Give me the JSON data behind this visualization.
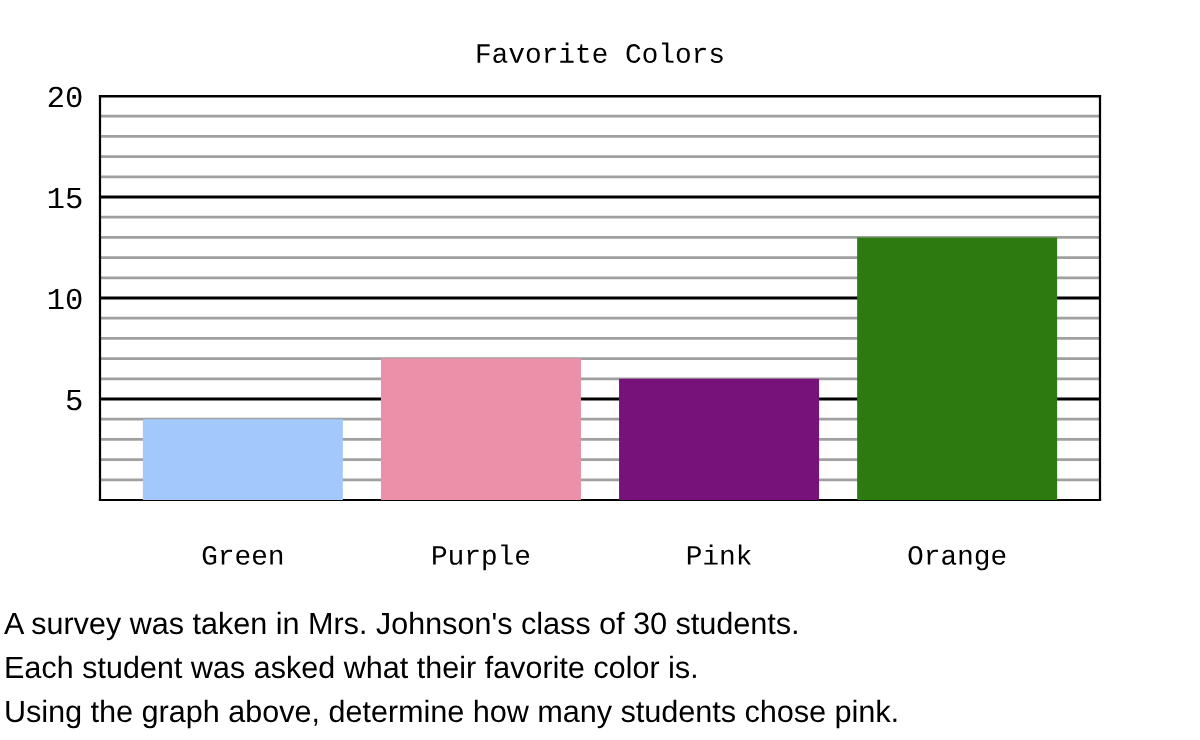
{
  "chart_data": {
    "type": "bar",
    "title": "Favorite Colors",
    "categories": [
      "Green",
      "Purple",
      "Pink",
      "Orange"
    ],
    "values": [
      4,
      7,
      6,
      13
    ],
    "colors": [
      "#a3c8fb",
      "#ec8fa8",
      "#77127a",
      "#2d7a10"
    ],
    "ylim": [
      0,
      20
    ],
    "yticks": [
      {
        "value": 1,
        "label": null
      },
      {
        "value": 2,
        "label": null
      },
      {
        "value": 3,
        "label": null
      },
      {
        "value": 4,
        "label": null
      },
      5,
      {
        "value": 6,
        "label": null
      },
      {
        "value": 7,
        "label": null
      },
      {
        "value": 8,
        "label": null
      },
      {
        "value": 9,
        "label": null
      },
      10,
      {
        "value": 11,
        "label": null
      },
      {
        "value": 12,
        "label": null
      },
      {
        "value": 13,
        "label": null
      },
      {
        "value": 14,
        "label": null
      },
      15,
      {
        "value": 16,
        "label": null
      },
      {
        "value": 17,
        "label": null
      },
      {
        "value": 18,
        "label": null
      },
      {
        "value": 19,
        "label": null
      },
      20
    ],
    "grid": "y",
    "annotations": [
      "A survey was taken in Mrs. Johnson's class of 30 students.",
      "Each student was asked what their favorite color is.",
      "Using the graph above, determine how many students chose pink."
    ]
  }
}
